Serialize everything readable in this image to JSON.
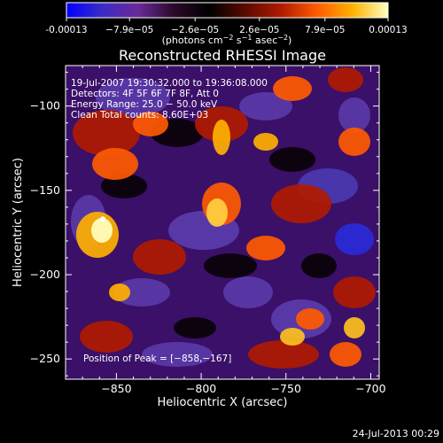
{
  "colorbar": {
    "ticks": [
      "-0.00013",
      "−7.9e−05",
      "−2.6e−05",
      "2.6e−05",
      "7.9e−05",
      "0.00013"
    ],
    "tick_values": [
      -0.00013,
      -7.9e-05,
      -2.6e-05,
      2.6e-05,
      7.9e-05,
      0.00013
    ],
    "range": [
      -0.00013,
      0.00013
    ],
    "unit_base": "(photons cm",
    "unit_exp1": "−2",
    "unit_mid": " s",
    "unit_exp2": "−1",
    "unit_mid2": " asec",
    "unit_exp3": "−2",
    "unit_end": ")",
    "colors": [
      "#0000ff",
      "#3b2bc6",
      "#6a2a9a",
      "#2a0a2a",
      "#000000",
      "#5a0a00",
      "#b01a00",
      "#ff5a00",
      "#ffb000",
      "#ffffc0"
    ]
  },
  "chart_data": {
    "type": "heatmap",
    "title": "Reconstructed RHESSI Image",
    "xlabel": "Heliocentric X (arcsec)",
    "ylabel": "Heliocentric Y (arcsec)",
    "xlim": [
      -880,
      -695
    ],
    "ylim": [
      -262,
      -76
    ],
    "x_ticks": [
      -850,
      -800,
      -750,
      -700
    ],
    "y_ticks": [
      -100,
      -150,
      -200,
      -250
    ],
    "x_tick_labels": [
      "−850",
      "−800",
      "−750",
      "−700"
    ],
    "y_tick_labels": [
      "−100",
      "−150",
      "−200",
      "−250"
    ],
    "annotations": [
      "19‑Jul‑2007 19:30:32.000 to 19:36:08.000",
      "Detectors: 4F 5F 6F 7F 8F, Att 0",
      "Energy Range: 25.0 − 50.0 keV",
      "Clean     Total counts: 8.60E+03"
    ],
    "peak_label": "Position of Peak = [−858,−167]",
    "peak": [
      -858,
      -167
    ]
  },
  "footer": {
    "date": "24‑Jul‑2013 00:29"
  }
}
